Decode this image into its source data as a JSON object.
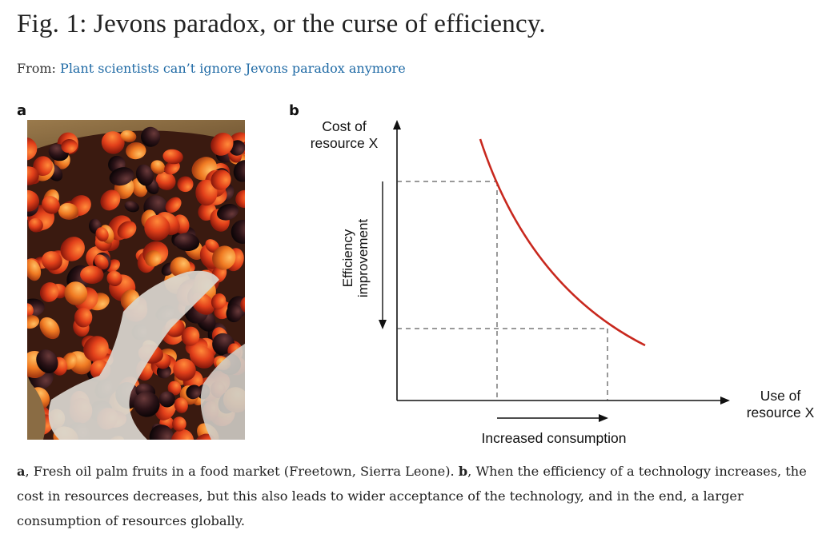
{
  "figure": {
    "title": "Fig. 1: Jevons paradox, or the curse of efficiency.",
    "from_label": "From:",
    "from_link": "Plant scientists can’t ignore Jevons paradox anymore"
  },
  "panel_a": {
    "letter": "a"
  },
  "panel_b": {
    "letter": "b",
    "y_axis_label_line1": "Cost of",
    "y_axis_label_line2": "resource X",
    "x_axis_label_line1": "Use of",
    "x_axis_label_line2": "resource X",
    "vertical_arrow_label_line1": "Efficiency",
    "vertical_arrow_label_line2": "improvement",
    "horizontal_arrow_label": "Increased consumption",
    "curve_color": "#c8281e"
  },
  "caption": {
    "a_letter": "a",
    "a_text": ", Fresh oil palm fruits in a food market (Freetown, Sierra Leone). ",
    "b_letter": "b",
    "b_text": ", When the efficiency of a technology increases, the cost in resources decreases, but this also leads to wider acceptance of the technology, and in the end, a larger consumption of resources globally."
  }
}
